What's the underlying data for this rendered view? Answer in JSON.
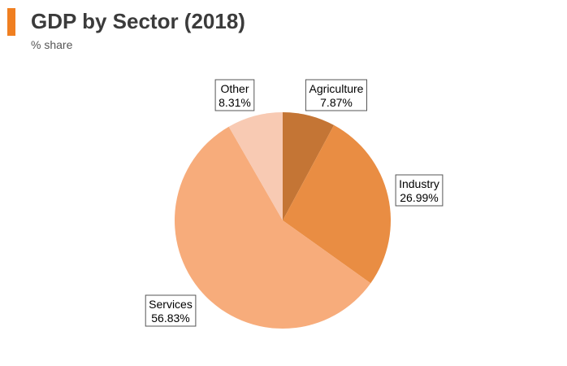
{
  "header": {
    "title": "GDP by Sector (2018)",
    "subtitle": "% share",
    "accent_color": "#f07f21"
  },
  "chart_data": {
    "type": "pie",
    "title": "GDP by Sector (2018)",
    "subtitle": "% share",
    "start": "12 o'clock, clockwise",
    "slices": [
      {
        "label": "Agriculture",
        "value": 7.87,
        "value_label": "7.87%",
        "color": "#c47535"
      },
      {
        "label": "Industry",
        "value": 26.99,
        "value_label": "26.99%",
        "color": "#e98d43"
      },
      {
        "label": "Services",
        "value": 56.83,
        "value_label": "56.83%",
        "color": "#f7ac7b"
      },
      {
        "label": "Other",
        "value": 8.31,
        "value_label": "8.31%",
        "color": "#f8cab3"
      }
    ]
  }
}
